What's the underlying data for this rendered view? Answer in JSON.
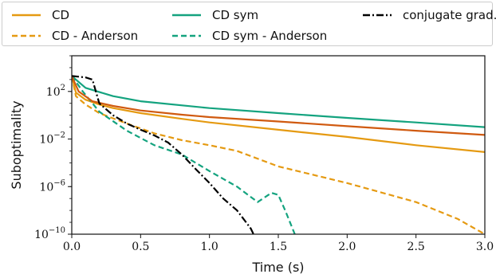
{
  "chart_data": {
    "type": "line",
    "xlabel": "Time (s)",
    "ylabel": "Suboptimality",
    "y_scale": "log",
    "xlim": [
      0.0,
      3.0
    ],
    "ylim": [
      1e-10,
      100000.0
    ],
    "xticks": [
      "0.0",
      "0.5",
      "1.0",
      "1.5",
      "2.0",
      "2.5",
      "3.0"
    ],
    "yticks": [
      {
        "base": "10",
        "exp": "2",
        "value": 100.0
      },
      {
        "base": "10",
        "exp": "−2",
        "value": 0.01
      },
      {
        "base": "10",
        "exp": "−6",
        "value": 1e-06
      },
      {
        "base": "10",
        "exp": "−10",
        "value": 1e-10
      }
    ],
    "legend_position": "top",
    "series": [
      {
        "name": "CD",
        "color": "#e59a12",
        "dash": "solid",
        "points": [
          [
            0.0,
            2000
          ],
          [
            0.03,
            80
          ],
          [
            0.1,
            20
          ],
          [
            0.2,
            8
          ],
          [
            0.3,
            4
          ],
          [
            0.5,
            1.5
          ],
          [
            0.8,
            0.5
          ],
          [
            1.0,
            0.25
          ],
          [
            1.5,
            0.06
          ],
          [
            2.0,
            0.015
          ],
          [
            2.5,
            0.003
          ],
          [
            3.0,
            0.0008
          ]
        ]
      },
      {
        "name": "CD - Anderson",
        "color": "#e59a12",
        "dash": "dashed",
        "points": [
          [
            0.0,
            2000
          ],
          [
            0.03,
            40
          ],
          [
            0.1,
            8
          ],
          [
            0.2,
            1.5
          ],
          [
            0.4,
            0.2
          ],
          [
            0.6,
            0.03
          ],
          [
            0.8,
            0.008
          ],
          [
            1.0,
            0.003
          ],
          [
            1.2,
            0.001
          ],
          [
            1.5,
            5e-05
          ],
          [
            2.0,
            2e-06
          ],
          [
            2.5,
            5e-08
          ],
          [
            2.8,
            2e-09
          ],
          [
            3.0,
            1e-10
          ]
        ]
      },
      {
        "name": "CD sym",
        "color": "#14a37f",
        "dash": "solid",
        "points": [
          [
            0.0,
            2000
          ],
          [
            0.1,
            200
          ],
          [
            0.3,
            40
          ],
          [
            0.5,
            15
          ],
          [
            1.0,
            4
          ],
          [
            1.5,
            1.5
          ],
          [
            2.0,
            0.6
          ],
          [
            2.5,
            0.25
          ],
          [
            3.0,
            0.1
          ]
        ]
      },
      {
        "name": "CD sym - Anderson",
        "color": "#14a37f",
        "dash": "dashed",
        "points": [
          [
            0.0,
            2000
          ],
          [
            0.08,
            100
          ],
          [
            0.2,
            2
          ],
          [
            0.4,
            0.05
          ],
          [
            0.6,
            0.003
          ],
          [
            0.8,
            0.0005
          ],
          [
            1.0,
            2e-05
          ],
          [
            1.2,
            1e-06
          ],
          [
            1.35,
            5e-08
          ],
          [
            1.45,
            3e-07
          ],
          [
            1.5,
            2e-07
          ],
          [
            1.55,
            1e-08
          ],
          [
            1.62,
            1e-10
          ]
        ]
      },
      {
        "name": "",
        "color": "#d05a10",
        "dash": "solid",
        "points": [
          [
            0.0,
            2000
          ],
          [
            0.05,
            100
          ],
          [
            0.15,
            15
          ],
          [
            0.3,
            6
          ],
          [
            0.5,
            2.5
          ],
          [
            0.8,
            1.1
          ],
          [
            1.0,
            0.7
          ],
          [
            1.5,
            0.3
          ],
          [
            2.0,
            0.12
          ],
          [
            2.5,
            0.05
          ],
          [
            3.0,
            0.022
          ]
        ]
      },
      {
        "name": "conjugate grad.",
        "color": "#000000",
        "dash": "dashdot",
        "points": [
          [
            0.0,
            2000
          ],
          [
            0.1,
            1500
          ],
          [
            0.15,
            1000
          ],
          [
            0.2,
            10
          ],
          [
            0.3,
            1
          ],
          [
            0.4,
            0.2
          ],
          [
            0.5,
            0.06
          ],
          [
            0.6,
            0.02
          ],
          [
            0.7,
            0.005
          ],
          [
            0.8,
            0.0005
          ],
          [
            0.9,
            3e-05
          ],
          [
            1.0,
            2e-06
          ],
          [
            1.1,
            1e-07
          ],
          [
            1.2,
            1e-08
          ],
          [
            1.3,
            3e-10
          ],
          [
            1.32,
            1e-10
          ]
        ]
      }
    ]
  }
}
